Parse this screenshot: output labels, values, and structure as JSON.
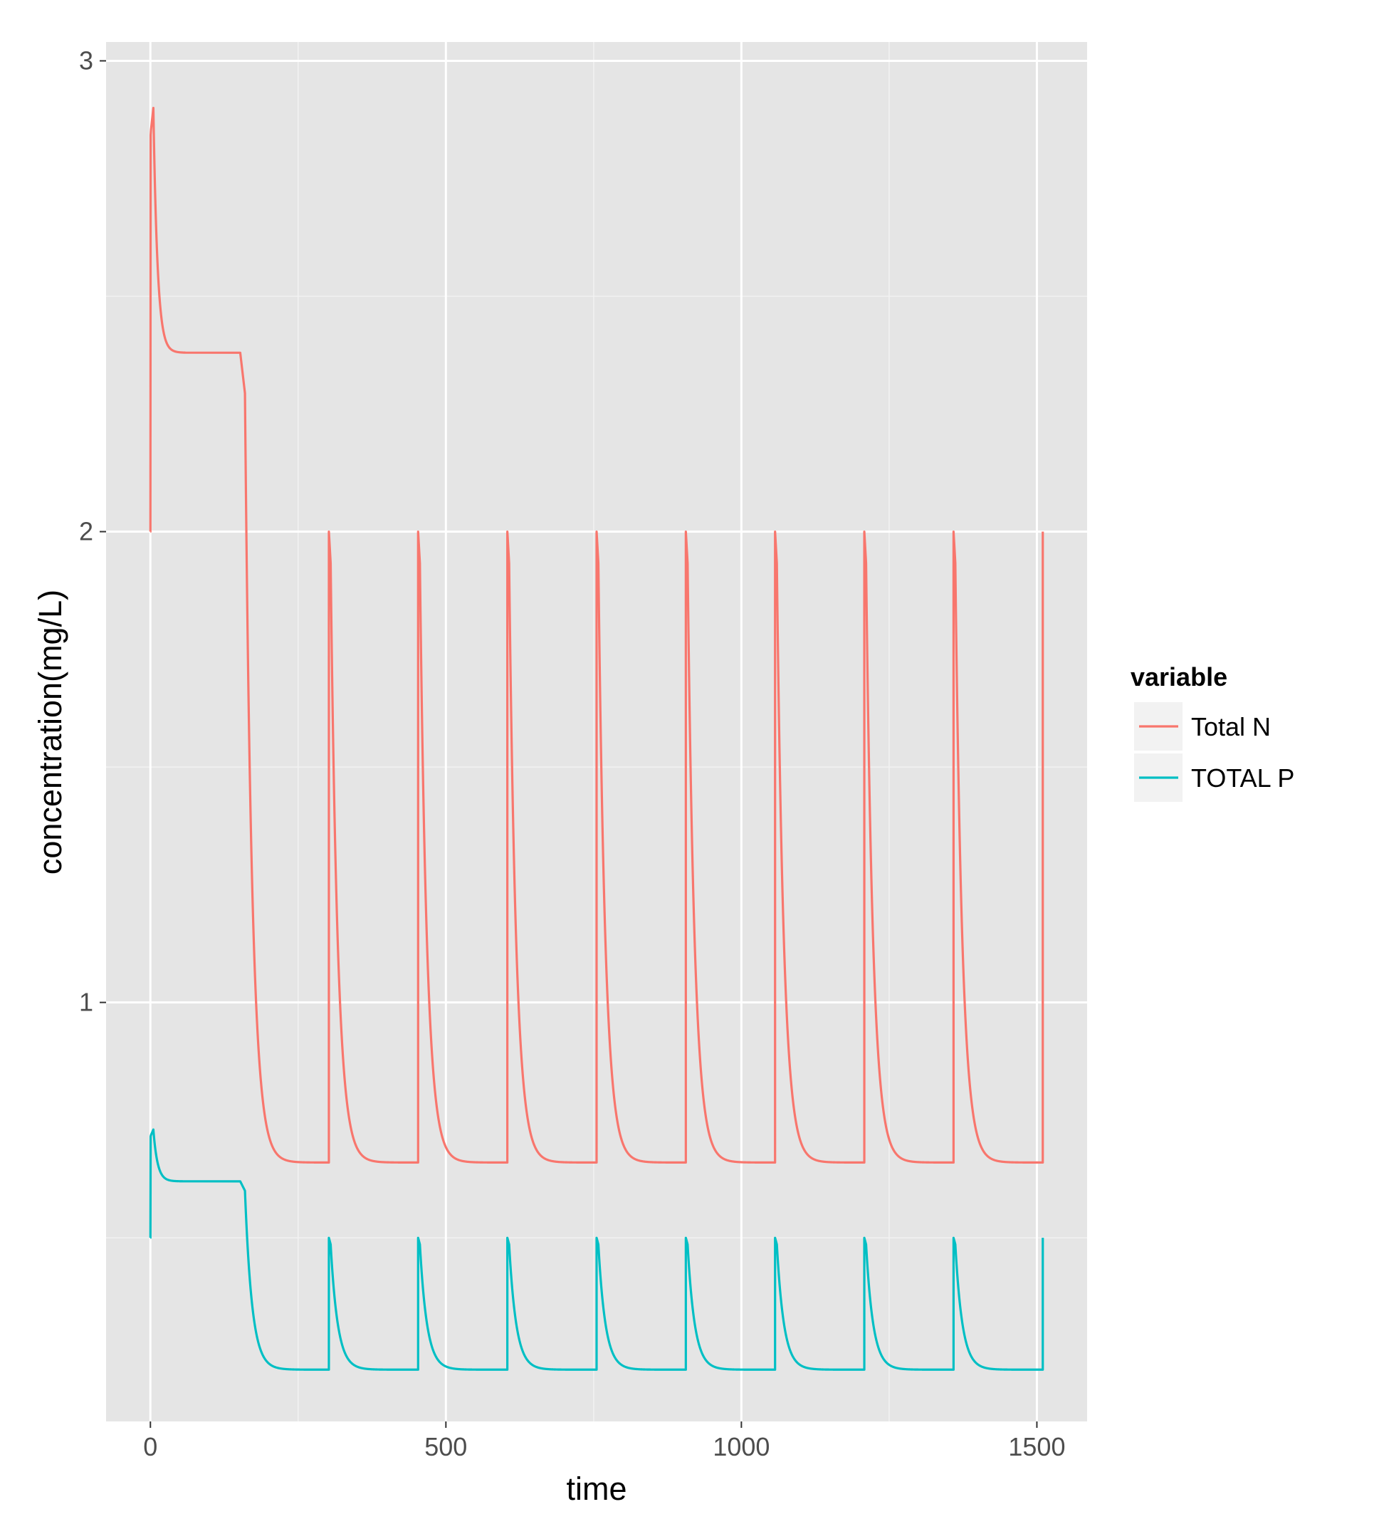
{
  "chart_data": {
    "type": "line",
    "title": "",
    "xlabel": "time",
    "ylabel": "concentration(mg/L)",
    "xlim": [
      -75,
      1585
    ],
    "ylim": [
      0.11,
      3.04
    ],
    "x_ticks": [
      0,
      500,
      1000,
      1500
    ],
    "x_tick_labels": [
      "0",
      "500",
      "1000",
      "1500"
    ],
    "y_ticks": [
      1,
      2,
      3
    ],
    "y_tick_labels": [
      "1",
      "2",
      "3"
    ],
    "y_minor_ticks": [
      0.5,
      1.5,
      2.5
    ],
    "x_minor_ticks": [
      250,
      750,
      1250
    ],
    "grid": true,
    "background": "#e5e5e5",
    "legend": {
      "title": "variable",
      "position": "right"
    },
    "series": [
      {
        "name": "Total N",
        "color": "#f8766d",
        "baseline": 0.66,
        "peak": 2.0,
        "initial": {
          "start": 2.0,
          "peak": 2.9,
          "plateau": 2.38,
          "peak_time": 5,
          "plateau_time": 40,
          "drop_time": 152
        },
        "pulse_times": [
          302,
          453,
          604,
          755,
          906,
          1057,
          1208,
          1359
        ],
        "end_time": 1510,
        "decay_tau": 12
      },
      {
        "name": "TOTAL P",
        "color": "#00bfc4",
        "baseline": 0.22,
        "peak": 0.5,
        "initial": {
          "start": 0.5,
          "peak": 0.73,
          "plateau": 0.62,
          "peak_time": 5,
          "plateau_time": 40,
          "drop_time": 152
        },
        "pulse_times": [
          302,
          453,
          604,
          755,
          906,
          1057,
          1208,
          1359
        ],
        "end_time": 1510,
        "decay_tau": 12
      }
    ]
  }
}
